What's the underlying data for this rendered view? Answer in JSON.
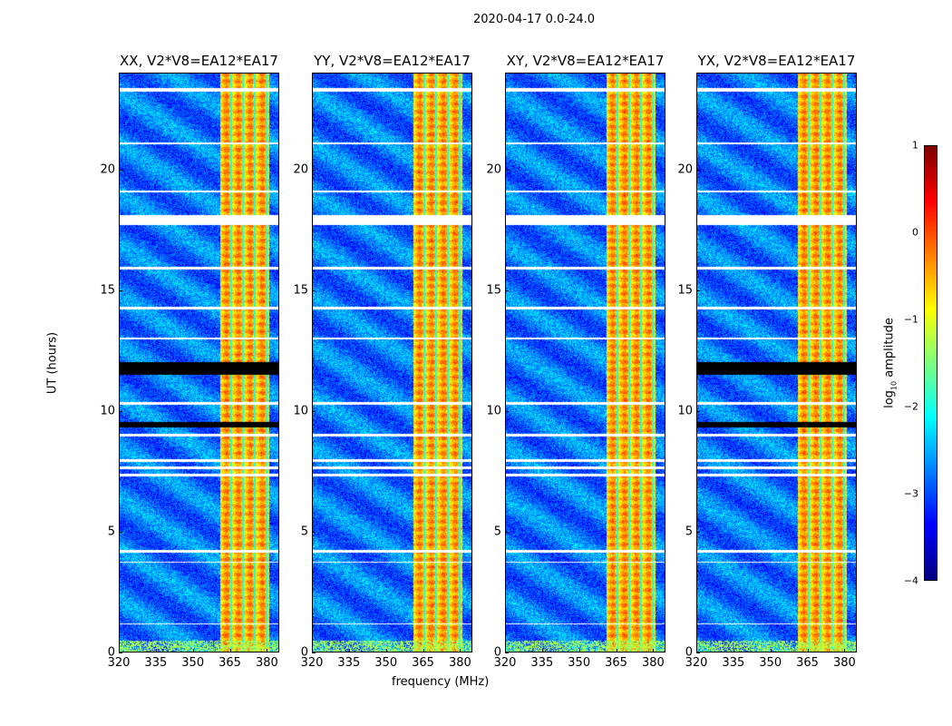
{
  "chart_data": {
    "type": "heatmap",
    "suptitle": "2020-04-17 0.0-24.0",
    "xlabel": "frequency (MHz)",
    "ylabel": "UT (hours)",
    "xlim": [
      320,
      385
    ],
    "ylim": [
      0,
      24
    ],
    "xticks": [
      "320",
      "335",
      "350",
      "365",
      "380"
    ],
    "xtick_values": [
      320,
      335,
      350,
      365,
      380
    ],
    "yticks": [
      "0",
      "5",
      "10",
      "15",
      "20"
    ],
    "ytick_values": [
      0,
      5,
      10,
      15,
      20
    ],
    "panels": [
      {
        "title": "XX, V2*V8=EA12*EA17",
        "black_ranges": [
          [
            11.5,
            12.0
          ],
          [
            9.3,
            9.55
          ]
        ]
      },
      {
        "title": "YY, V2*V8=EA12*EA17",
        "black_ranges": []
      },
      {
        "title": "XY, V2*V8=EA12*EA17",
        "black_ranges": []
      },
      {
        "title": "YX, V2*V8=EA12*EA17",
        "black_ranges": [
          [
            11.5,
            12.0
          ],
          [
            9.3,
            9.55
          ]
        ]
      }
    ],
    "rfi_band_mhz": [
      361,
      381
    ],
    "background_log_amplitude": -2.8,
    "rfi_log_amplitude": -0.5,
    "flagged_time_ranges": [
      [
        23.2,
        23.35
      ],
      [
        17.7,
        18.1
      ],
      [
        15.85,
        15.95
      ],
      [
        12.95,
        13.05
      ],
      [
        10.25,
        10.35
      ],
      [
        8.95,
        9.05
      ],
      [
        7.9,
        8.0
      ],
      [
        7.6,
        7.7
      ],
      [
        7.3,
        7.4
      ],
      [
        4.15,
        4.25
      ],
      [
        3.7,
        3.75
      ],
      [
        1.15,
        1.2
      ],
      [
        19.05,
        19.1
      ],
      [
        21.05,
        21.1
      ],
      [
        14.2,
        14.3
      ]
    ],
    "colorbar": {
      "label": "log10 amplitude",
      "label_main": "log",
      "label_sub": "10",
      "label_rest": " amplitude",
      "colormap": "jet",
      "range": [
        -4,
        1
      ],
      "ticks": [
        "1",
        "0",
        "−1",
        "−2",
        "−3",
        "−4"
      ],
      "tick_values": [
        1,
        0,
        -1,
        -2,
        -3,
        -4
      ]
    }
  }
}
